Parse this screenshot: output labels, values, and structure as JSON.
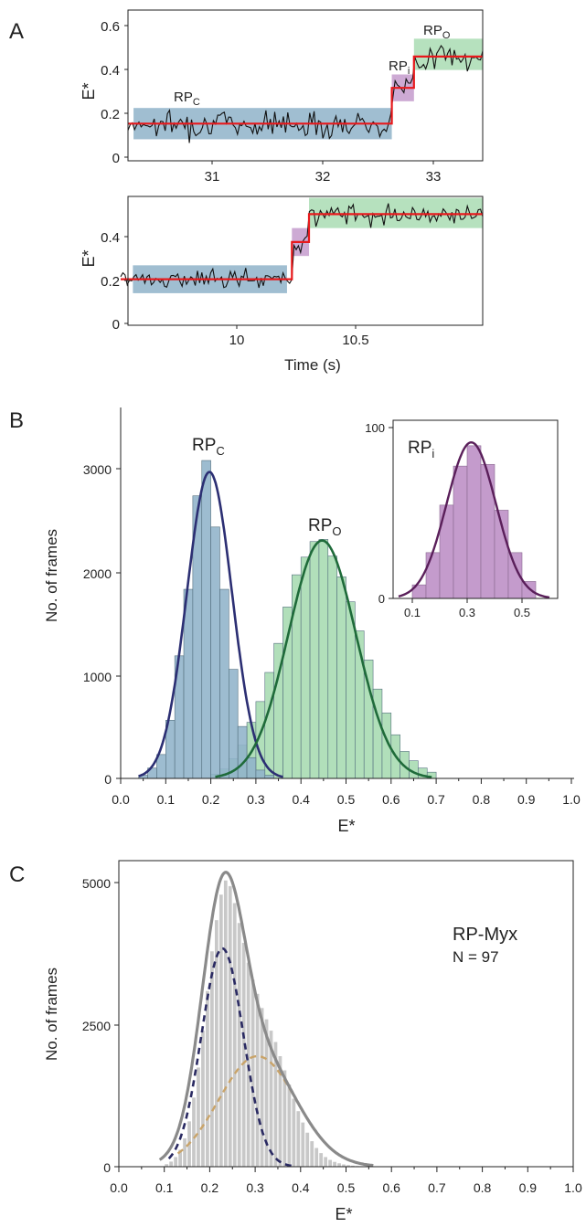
{
  "panels": {
    "A": {
      "letter": "A",
      "top": {
        "ylabel": "E*",
        "yticks": [
          "0",
          "0.2",
          "0.4",
          "0.6"
        ],
        "xticks": [
          "31",
          "32",
          "33"
        ],
        "labels": {
          "rpc": "RP",
          "rpc_sub": "C",
          "rpi": "RP",
          "rpi_sub": "i",
          "rpo": "RP",
          "rpo_sub": "O"
        }
      },
      "bottom": {
        "ylabel": "E*",
        "xlabel": "Time (s)",
        "yticks": [
          "0",
          "0.2",
          "0.4"
        ],
        "xticks": [
          "10",
          "10.5"
        ]
      }
    },
    "B": {
      "letter": "B",
      "ylabel": "No. of frames",
      "xlabel": "E*",
      "yticks": [
        "0",
        "1000",
        "2000",
        "3000"
      ],
      "xticks": [
        "0.0",
        "0.1",
        "0.2",
        "0.3",
        "0.4",
        "0.5",
        "0.6",
        "0.7",
        "0.8",
        "0.9",
        "1.0"
      ],
      "labels": {
        "rpc": "RP",
        "rpc_sub": "C",
        "rpo": "RP",
        "rpo_sub": "O"
      },
      "inset": {
        "label": "RP",
        "label_sub": "i",
        "yticks": [
          "0",
          "100"
        ],
        "xticks": [
          "0.1",
          "0.3",
          "0.5"
        ]
      }
    },
    "C": {
      "letter": "C",
      "ylabel": "No. of frames",
      "xlabel": "E*",
      "yticks": [
        "0",
        "2500",
        "5000"
      ],
      "xticks": [
        "0.0",
        "0.1",
        "0.2",
        "0.3",
        "0.4",
        "0.5",
        "0.6",
        "0.7",
        "0.8",
        "0.9",
        "1.0"
      ],
      "annotation": {
        "name": "RP-Myx",
        "n": "N = 97"
      }
    }
  },
  "colors": {
    "trace": "#111111",
    "fit": "#e8191c",
    "blue_fill": "#8fb3c9",
    "purple_fill": "#c49bcc",
    "green_fill": "#a9dcb3",
    "blue_curve": "#2c2f73",
    "green_curve": "#1f6b3a",
    "purple_curve": "#5a1f5a",
    "grey_bar": "#c8c8c8",
    "grey_curve": "#8a8a8a",
    "orange_dash": "#c9a46a",
    "navy_dash": "#2a2a62"
  },
  "chart_data": [
    {
      "type": "line",
      "panel": "A-top",
      "xlabel": "",
      "ylabel": "E*",
      "xlim": [
        30.3,
        33.5
      ],
      "ylim": [
        0,
        0.65
      ],
      "fit_steps": [
        {
          "state": "RPC",
          "x_start": 30.3,
          "x_end": 32.68,
          "value": 0.15
        },
        {
          "state": "RPi",
          "x_start": 32.68,
          "x_end": 32.88,
          "value": 0.31
        },
        {
          "state": "RPO",
          "x_start": 32.88,
          "x_end": 33.5,
          "value": 0.45
        }
      ],
      "state_bands": [
        {
          "state": "RPC",
          "x_start": 30.35,
          "x_end": 32.68,
          "y_low": 0.08,
          "y_high": 0.22
        },
        {
          "state": "RPi",
          "x_start": 32.68,
          "x_end": 32.88,
          "y_low": 0.25,
          "y_high": 0.37
        },
        {
          "state": "RPO",
          "x_start": 32.88,
          "x_end": 33.5,
          "y_low": 0.39,
          "y_high": 0.53
        }
      ],
      "noise_sd": 0.03
    },
    {
      "type": "line",
      "panel": "A-bottom",
      "xlabel": "Time (s)",
      "ylabel": "E*",
      "xlim": [
        9.5,
        10.98
      ],
      "ylim": [
        0,
        0.55
      ],
      "fit_steps": [
        {
          "state": "RPC",
          "x_start": 9.5,
          "x_end": 10.2,
          "value": 0.19
        },
        {
          "state": "RPi",
          "x_start": 10.2,
          "x_end": 10.27,
          "value": 0.35
        },
        {
          "state": "RPO",
          "x_start": 10.27,
          "x_end": 10.98,
          "value": 0.47
        }
      ],
      "state_bands": [
        {
          "state": "RPC",
          "x_start": 9.55,
          "x_end": 10.18,
          "y_low": 0.13,
          "y_high": 0.25
        },
        {
          "state": "RPi",
          "x_start": 10.2,
          "x_end": 10.27,
          "y_low": 0.29,
          "y_high": 0.41
        },
        {
          "state": "RPO",
          "x_start": 10.27,
          "x_end": 10.98,
          "y_low": 0.41,
          "y_high": 0.54
        }
      ],
      "noise_sd": 0.02
    },
    {
      "type": "bar",
      "panel": "B",
      "xlabel": "E*",
      "ylabel": "No. of frames",
      "xlim": [
        0,
        1.0
      ],
      "ylim": [
        0,
        3500
      ],
      "bin_width": 0.02,
      "series": [
        {
          "name": "RPC",
          "bin_starts": [
            0.04,
            0.06,
            0.08,
            0.1,
            0.12,
            0.14,
            0.16,
            0.18,
            0.2,
            0.22,
            0.24,
            0.26,
            0.28,
            0.3,
            0.32
          ],
          "values": [
            30,
            100,
            230,
            560,
            1180,
            1820,
            2720,
            3060,
            2420,
            1820,
            1050,
            500,
            200,
            80,
            30
          ]
        },
        {
          "name": "RPO",
          "bin_starts": [
            0.2,
            0.22,
            0.24,
            0.26,
            0.28,
            0.3,
            0.32,
            0.34,
            0.36,
            0.38,
            0.4,
            0.42,
            0.44,
            0.46,
            0.48,
            0.5,
            0.52,
            0.54,
            0.56,
            0.58,
            0.6,
            0.62,
            0.64,
            0.66,
            0.68
          ],
          "values": [
            40,
            90,
            190,
            320,
            540,
            740,
            1020,
            1300,
            1650,
            1960,
            2130,
            2280,
            2300,
            2140,
            1940,
            1700,
            1420,
            1140,
            860,
            630,
            420,
            260,
            170,
            100,
            60
          ]
        }
      ],
      "fits": [
        {
          "name": "RPC",
          "amplitude": 2950,
          "mean": 0.197,
          "sd": 0.05
        },
        {
          "name": "RPO",
          "amplitude": 2290,
          "mean": 0.447,
          "sd": 0.075
        }
      ]
    },
    {
      "type": "bar",
      "panel": "B-inset",
      "xlabel": "",
      "ylabel": "",
      "xlim": [
        0.03,
        0.63
      ],
      "ylim": [
        0,
        105
      ],
      "bin_width": 0.05,
      "series": [
        {
          "name": "RPi",
          "bin_starts": [
            0.1,
            0.15,
            0.2,
            0.25,
            0.3,
            0.35,
            0.4,
            0.45,
            0.5
          ],
          "values": [
            8,
            27,
            55,
            78,
            90,
            79,
            52,
            27,
            10
          ]
        }
      ],
      "fits": [
        {
          "name": "RPi",
          "amplitude": 92,
          "mean": 0.315,
          "sd": 0.09
        }
      ]
    },
    {
      "type": "bar",
      "panel": "C",
      "xlabel": "E*",
      "ylabel": "No. of frames",
      "xlim": [
        0,
        1.0
      ],
      "ylim": [
        0,
        5400
      ],
      "bin_width": 0.01,
      "series": [
        {
          "name": "RP-Myx",
          "bin_starts": [
            0.1,
            0.11,
            0.12,
            0.13,
            0.14,
            0.15,
            0.16,
            0.17,
            0.18,
            0.19,
            0.2,
            0.21,
            0.22,
            0.23,
            0.24,
            0.25,
            0.26,
            0.27,
            0.28,
            0.29,
            0.3,
            0.31,
            0.32,
            0.33,
            0.34,
            0.35,
            0.36,
            0.37,
            0.38,
            0.39,
            0.4,
            0.41,
            0.42,
            0.43,
            0.44,
            0.45,
            0.46,
            0.47,
            0.48,
            0.49,
            0.5,
            0.51,
            0.52,
            0.53
          ],
          "values": [
            45,
            90,
            170,
            300,
            500,
            800,
            1220,
            1750,
            2400,
            3100,
            3800,
            4350,
            4800,
            5050,
            4950,
            4650,
            4300,
            3950,
            3600,
            3300,
            3050,
            2800,
            2600,
            2400,
            2200,
            1950,
            1700,
            1450,
            1200,
            980,
            780,
            600,
            450,
            330,
            240,
            170,
            120,
            85,
            60,
            40,
            28,
            18,
            12,
            8
          ]
        }
      ],
      "fits": [
        {
          "name": "total",
          "style": "solid",
          "amplitude": 5020,
          "mean": 0.24
        },
        {
          "name": "component-1",
          "style": "dashed",
          "amplitude": 3850,
          "mean": 0.228,
          "sd": 0.046
        },
        {
          "name": "component-2",
          "style": "dashed",
          "amplitude": 1950,
          "mean": 0.305,
          "sd": 0.085
        }
      ]
    }
  ]
}
